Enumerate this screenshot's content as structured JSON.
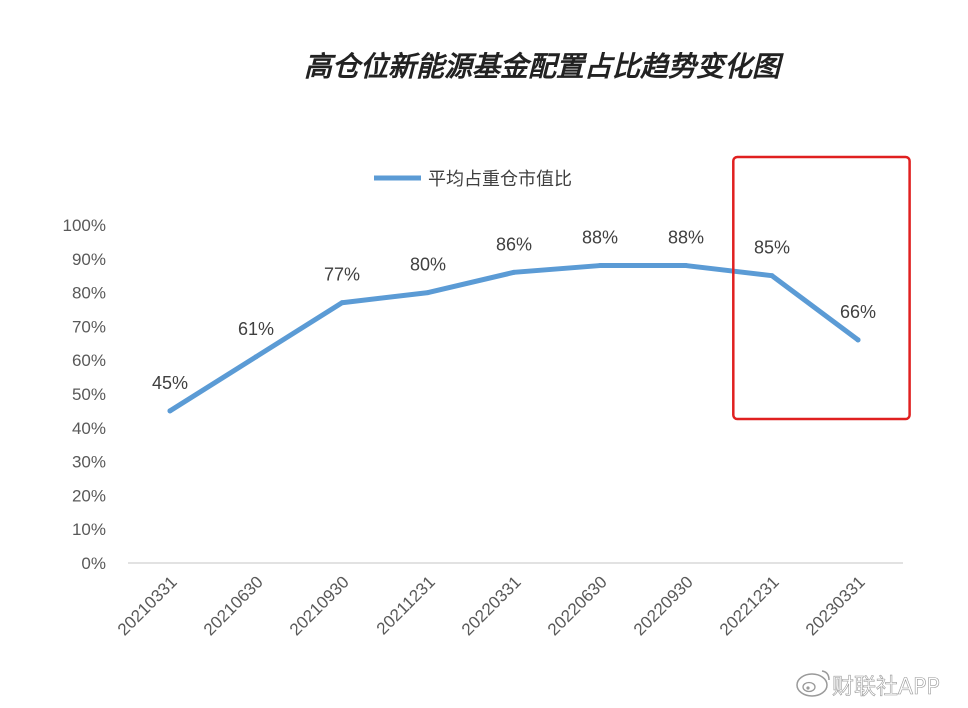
{
  "chart_data": {
    "type": "line",
    "title": "高仓位新能源基金配置占比趋势变化图",
    "categories": [
      "20210331",
      "20210630",
      "20210930",
      "20211231",
      "20220331",
      "20220630",
      "20220930",
      "20221231",
      "20230331"
    ],
    "series": [
      {
        "name": "平均占重仓市值比",
        "values": [
          45,
          61,
          77,
          80,
          86,
          88,
          88,
          85,
          66
        ],
        "data_labels": [
          "45%",
          "61%",
          "77%",
          "80%",
          "86%",
          "88%",
          "88%",
          "85%",
          "66%"
        ],
        "color": "#5B9BD5"
      }
    ],
    "ylim": [
      0,
      100
    ],
    "y_ticks": [
      0,
      10,
      20,
      30,
      40,
      50,
      60,
      70,
      80,
      90,
      100
    ],
    "y_tick_labels": [
      "0%",
      "10%",
      "20%",
      "30%",
      "40%",
      "50%",
      "60%",
      "70%",
      "80%",
      "90%",
      "100%"
    ],
    "grid": false,
    "legend_position": "top-center",
    "highlight": {
      "categories": [
        "20221231",
        "20230331"
      ],
      "color": "#E02020"
    }
  },
  "watermark": {
    "text": "财联社APP",
    "icon": "weibo-icon"
  }
}
